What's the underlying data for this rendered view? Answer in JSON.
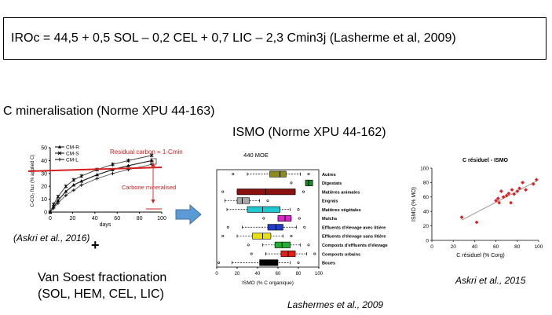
{
  "formula": "IROc = 44,5 + 0,5 SOL – 0,2 CEL + 0,7 LIC – 2,3 Cmin3j (Lasherme et al, 2009)",
  "left_section": {
    "title": "C mineralisation (Norme XPU 44-163)",
    "citation": "(Askri et al., 2016)",
    "plus": "+",
    "van_soest_line1": "Van Soest fractionation",
    "van_soest_line2": "(SOL, HEM, CEL, LIC)"
  },
  "middle_section": {
    "title": "ISMO (Norme XPU 44-162)",
    "citation": "Lashermes et al., 2009"
  },
  "right_section": {
    "citation": "Askri et al., 2015"
  },
  "chart_data": [
    {
      "type": "line",
      "ylabel": "C-CO₂ flux (% applied C)",
      "xlabel": "days",
      "xticks": [
        0,
        20,
        40,
        60,
        80,
        100
      ],
      "yticks": [
        0,
        10,
        20,
        30,
        40,
        50
      ],
      "xlim": [
        0,
        100
      ],
      "ylim": [
        0,
        50
      ],
      "x": [
        0,
        3,
        7,
        14,
        21,
        28,
        42,
        56,
        70,
        91
      ],
      "series": [
        {
          "name": "CM-R",
          "marker": "triangle",
          "values": [
            0,
            4,
            9,
            16,
            21,
            24,
            29,
            33,
            36,
            40
          ]
        },
        {
          "name": "CM-S",
          "marker": "star",
          "values": [
            0,
            6,
            12,
            20,
            25,
            28,
            33,
            37,
            40,
            44
          ]
        },
        {
          "name": "CM-L",
          "marker": "plus",
          "values": [
            0,
            3,
            7,
            13,
            17,
            21,
            26,
            30,
            33,
            37
          ]
        }
      ],
      "annotations": {
        "residual_label": "Residual carbon = 1-Cmin",
        "mineralised_label": "Carbone mineralised",
        "residual_line_color": "#d42020"
      }
    },
    {
      "type": "boxplot",
      "title": "440 MOE",
      "xlabel": "ISMO (% C organique)",
      "xticks": [
        0,
        20,
        40,
        60,
        80,
        100
      ],
      "xlim": [
        0,
        100
      ],
      "categories": [
        "Autres",
        "Digestats",
        "Matières animales",
        "Engrais",
        "Matières végétales",
        "Mulchs",
        "Effluents d'élevage avec litière",
        "Effluents d'élevage sans litière",
        "Composts d'effluents d'élevage",
        "Composts urbains",
        "Boues"
      ],
      "boxes": [
        {
          "min": 30,
          "q1": 52,
          "median": 62,
          "q3": 68,
          "max": 82,
          "color": "#8b8b1a"
        },
        {
          "min": 87,
          "q1": 87,
          "median": 90,
          "q3": 94,
          "max": 94,
          "color": "#1a8a2a"
        },
        {
          "min": 20,
          "q1": 20,
          "median": 48,
          "q3": 77,
          "max": 77,
          "color": "#8b1010"
        },
        {
          "min": 8,
          "q1": 20,
          "median": 25,
          "q3": 32,
          "max": 42,
          "color": "#a8a8a8"
        },
        {
          "min": 10,
          "q1": 30,
          "median": 45,
          "q3": 62,
          "max": 72,
          "color": "#20c8d0"
        },
        {
          "min": 60,
          "q1": 60,
          "median": 67,
          "q3": 73,
          "max": 73,
          "color": "#d828c8"
        },
        {
          "min": 25,
          "q1": 50,
          "median": 58,
          "q3": 65,
          "max": 78,
          "color": "#1e3cc8"
        },
        {
          "min": 20,
          "q1": 35,
          "median": 45,
          "q3": 53,
          "max": 65,
          "color": "#e8e010"
        },
        {
          "min": 45,
          "q1": 57,
          "median": 64,
          "q3": 72,
          "max": 82,
          "color": "#20b030"
        },
        {
          "min": 48,
          "q1": 63,
          "median": 70,
          "q3": 77,
          "max": 88,
          "color": "#e02018"
        },
        {
          "min": 15,
          "q1": 42,
          "median": 50,
          "q3": 60,
          "max": 72,
          "color": "#000000"
        }
      ]
    },
    {
      "type": "scatter",
      "title": "C résiduel - ISMO",
      "xlabel": "C résiduel (% Corg)",
      "ylabel": "ISMO (% MO)",
      "xticks": [
        0,
        20,
        40,
        60,
        80,
        100
      ],
      "yticks": [
        0,
        20,
        40,
        60,
        80,
        100
      ],
      "xlim": [
        0,
        100
      ],
      "ylim": [
        0,
        100
      ],
      "color": "#e02020",
      "trendline": [
        [
          28,
          28
        ],
        [
          98,
          82
        ]
      ],
      "points": [
        [
          28,
          32
        ],
        [
          42,
          25
        ],
        [
          60,
          55
        ],
        [
          62,
          58
        ],
        [
          63,
          52
        ],
        [
          65,
          68
        ],
        [
          67,
          60
        ],
        [
          70,
          62
        ],
        [
          72,
          65
        ],
        [
          74,
          52
        ],
        [
          75,
          70
        ],
        [
          77,
          64
        ],
        [
          80,
          68
        ],
        [
          82,
          72
        ],
        [
          85,
          80
        ],
        [
          88,
          70
        ],
        [
          95,
          78
        ],
        [
          98,
          84
        ]
      ]
    }
  ]
}
